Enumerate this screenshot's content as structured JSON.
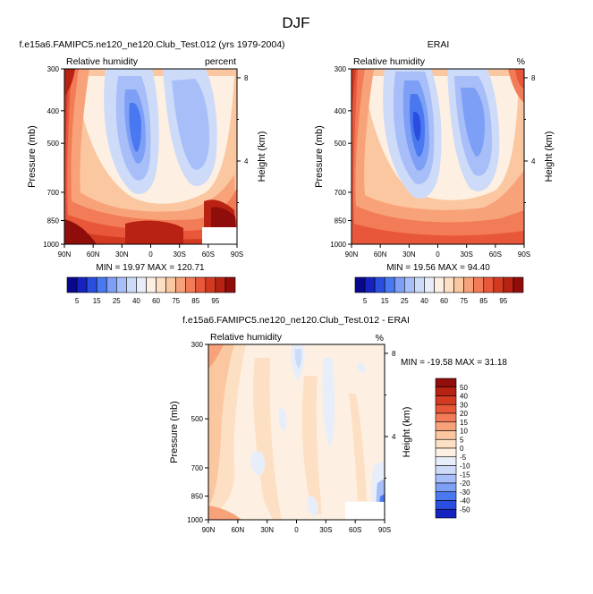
{
  "page": {
    "title": "DJF"
  },
  "chart_data": [
    {
      "type": "heatmap",
      "id": "model",
      "title": "f.e15a6.FAMIPC5.ne120_ne120.Club_Test.012 (yrs 1979-2004)",
      "subtitle_left": "Relative humidity",
      "subtitle_right": "percent",
      "xlabel": "",
      "ylabel": "Pressure (mb)",
      "ylabel_right": "Height (km)",
      "x_ticks": [
        "90N",
        "60N",
        "30N",
        "0",
        "30S",
        "60S",
        "90S"
      ],
      "y_ticks": [
        "300",
        "400",
        "500",
        "700",
        "850",
        "1000"
      ],
      "y_right_ticks": [
        "8",
        "4"
      ],
      "stats": "MIN = 19.97  MAX = 120.71",
      "colorbar": {
        "orientation": "horizontal",
        "labels": [
          "5",
          "15",
          "25",
          "40",
          "60",
          "75",
          "85",
          "95"
        ],
        "colors": [
          "#08088f",
          "#1622c0",
          "#2a4fe0",
          "#4a78f0",
          "#7d9ff5",
          "#a8bef8",
          "#cddbf9",
          "#e8eef9",
          "#fdf0e2",
          "#fde0c4",
          "#fbc7a0",
          "#f8a27a",
          "#f27c57",
          "#e8573a",
          "#d43a22",
          "#b82212",
          "#8f0d0a"
        ]
      }
    },
    {
      "type": "heatmap",
      "id": "obs",
      "title": "ERAI",
      "subtitle_left": "Relative humidity",
      "subtitle_right": "%",
      "xlabel": "",
      "ylabel": "Pressure (mb)",
      "ylabel_right": "Height (km)",
      "x_ticks": [
        "90N",
        "60N",
        "30N",
        "0",
        "30S",
        "60S",
        "90S"
      ],
      "y_ticks": [
        "300",
        "400",
        "500",
        "700",
        "850",
        "1000"
      ],
      "y_right_ticks": [
        "8",
        "4"
      ],
      "stats": "MIN = 19.56  MAX = 94.40",
      "colorbar": {
        "orientation": "horizontal",
        "labels": [
          "5",
          "15",
          "25",
          "40",
          "60",
          "75",
          "85",
          "95"
        ],
        "colors": [
          "#08088f",
          "#1622c0",
          "#2a4fe0",
          "#4a78f0",
          "#7d9ff5",
          "#a8bef8",
          "#cddbf9",
          "#e8eef9",
          "#fdf0e2",
          "#fde0c4",
          "#fbc7a0",
          "#f8a27a",
          "#f27c57",
          "#e8573a",
          "#d43a22",
          "#b82212",
          "#8f0d0a"
        ]
      }
    },
    {
      "type": "heatmap",
      "id": "diff",
      "title": "f.e15a6.FAMIPC5.ne120_ne120.Club_Test.012 - ERAI",
      "subtitle_left": "Relative humidity",
      "subtitle_right": "%",
      "xlabel": "",
      "ylabel": "Pressure (mb)",
      "ylabel_right": "Height (km)",
      "x_ticks": [
        "90N",
        "60N",
        "30N",
        "0",
        "30S",
        "60S",
        "90S"
      ],
      "y_ticks": [
        "300",
        "500",
        "700",
        "850",
        "1000"
      ],
      "y_right_ticks": [
        "8",
        "4"
      ],
      "stats": "MIN = -19.58  MAX =  31.18",
      "colorbar": {
        "orientation": "vertical",
        "labels": [
          "50",
          "40",
          "30",
          "20",
          "15",
          "10",
          "5",
          "0",
          "-5",
          "-10",
          "-15",
          "-20",
          "-30",
          "-40",
          "-50"
        ],
        "colors": [
          "#8f0d0a",
          "#b82212",
          "#d43a22",
          "#e8573a",
          "#f27c57",
          "#f8a27a",
          "#fbc7a0",
          "#fde0c4",
          "#fdf0e2",
          "#e8eef9",
          "#cddbf9",
          "#a8bef8",
          "#7d9ff5",
          "#4a78f0",
          "#2a4fe0",
          "#1622c0"
        ]
      }
    }
  ]
}
